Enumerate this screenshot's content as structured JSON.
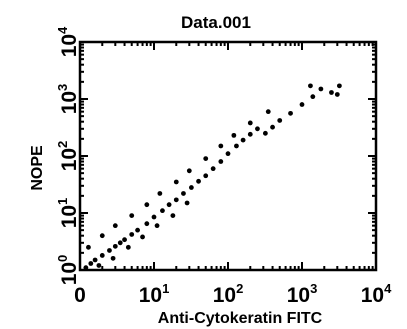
{
  "chart_data": {
    "type": "scatter",
    "title": "Data.001",
    "xlabel": "Anti-Cytokeratin FITC",
    "ylabel": "NOPE",
    "x_scale": "log",
    "y_scale": "log",
    "xlim": [
      1,
      10000
    ],
    "ylim": [
      1,
      10000
    ],
    "x_ticks": [
      {
        "value": 1,
        "base": "10",
        "exp": "0"
      },
      {
        "value": 10,
        "base": "10",
        "exp": "1"
      },
      {
        "value": 100,
        "base": "10",
        "exp": "2"
      },
      {
        "value": 1000,
        "base": "10",
        "exp": "3"
      },
      {
        "value": 10000,
        "base": "10",
        "exp": "4"
      }
    ],
    "y_ticks": [
      {
        "value": 1,
        "base": "10",
        "exp": "0"
      },
      {
        "value": 10,
        "base": "10",
        "exp": "1"
      },
      {
        "value": 100,
        "base": "10",
        "exp": "2"
      },
      {
        "value": 1000,
        "base": "10",
        "exp": "3"
      },
      {
        "value": 10000,
        "base": "10",
        "exp": "4"
      }
    ],
    "x_tick_display": [
      "0",
      "10",
      "10",
      "10",
      "10"
    ],
    "grid": false,
    "legend": "none",
    "marker_color": "#000000",
    "points": [
      [
        1.2,
        1.1
      ],
      [
        1.4,
        1.3
      ],
      [
        1.6,
        1.5
      ],
      [
        2.0,
        1.8
      ],
      [
        2.5,
        2.2
      ],
      [
        3.0,
        2.6
      ],
      [
        3.5,
        3.0
      ],
      [
        4.0,
        3.4
      ],
      [
        5.0,
        4.2
      ],
      [
        6.0,
        5.0
      ],
      [
        8.0,
        6.5
      ],
      [
        10,
        8.5
      ],
      [
        13,
        11
      ],
      [
        16,
        14
      ],
      [
        20,
        17
      ],
      [
        25,
        22
      ],
      [
        32,
        28
      ],
      [
        40,
        36
      ],
      [
        50,
        45
      ],
      [
        63,
        60
      ],
      [
        80,
        80
      ],
      [
        100,
        110
      ],
      [
        130,
        150
      ],
      [
        160,
        190
      ],
      [
        200,
        240
      ],
      [
        250,
        300
      ],
      [
        320,
        250
      ],
      [
        400,
        320
      ],
      [
        500,
        420
      ],
      [
        700,
        560
      ],
      [
        1000,
        800
      ],
      [
        1400,
        1100
      ],
      [
        1800,
        1500
      ],
      [
        2500,
        1300
      ],
      [
        3200,
        1700
      ],
      [
        1.3,
        2.5
      ],
      [
        2.0,
        4.0
      ],
      [
        3.0,
        6.0
      ],
      [
        5.0,
        9.0
      ],
      [
        8.0,
        14
      ],
      [
        12,
        22
      ],
      [
        20,
        35
      ],
      [
        30,
        55
      ],
      [
        50,
        90
      ],
      [
        80,
        150
      ],
      [
        120,
        230
      ],
      [
        200,
        380
      ],
      [
        350,
        600
      ],
      [
        1300,
        1700
      ],
      [
        3000,
        1200
      ],
      [
        1.8,
        1.2
      ],
      [
        2.8,
        1.6
      ],
      [
        4.5,
        2.5
      ],
      [
        7.0,
        3.8
      ],
      [
        11,
        6.0
      ],
      [
        18,
        9.0
      ],
      [
        28,
        15
      ]
    ]
  }
}
